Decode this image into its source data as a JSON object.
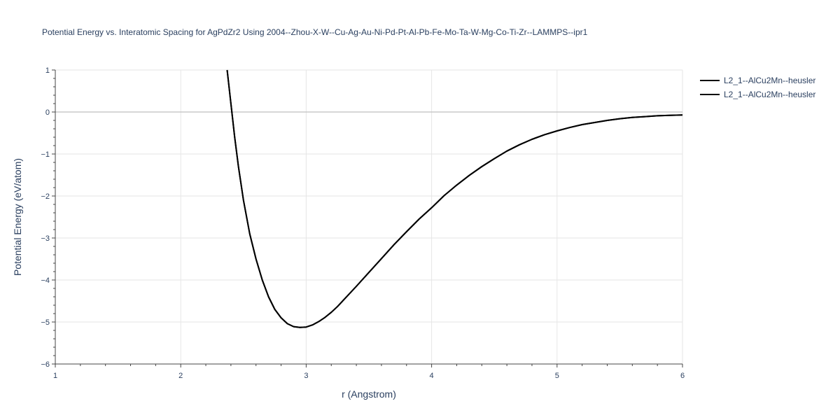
{
  "chart_data": {
    "type": "line",
    "title": "Potential Energy vs. Interatomic Spacing for AgPdZr2 Using 2004--Zhou-X-W--Cu-Ag-Au-Ni-Pd-Pt-Al-Pb-Fe-Mo-Ta-W-Mg-Co-Ti-Zr--LAMMPS--ipr1",
    "xlabel": "r (Angstrom)",
    "ylabel": "Potential Energy (eV/atom)",
    "xlim": [
      1,
      6
    ],
    "ylim": [
      -6,
      1
    ],
    "x_ticks": [
      1,
      2,
      3,
      4,
      5,
      6
    ],
    "y_ticks": [
      1,
      0,
      -1,
      -2,
      -3,
      -4,
      -5,
      -6
    ],
    "x_tick_labels": [
      "1",
      "2",
      "3",
      "4",
      "5",
      "6"
    ],
    "y_tick_labels": [
      "1",
      "0",
      "−1",
      "−2",
      "−3",
      "−4",
      "−5",
      "−6"
    ],
    "grid": true,
    "zero_line": true,
    "legend_position": "top-right",
    "line_color": "#000000",
    "series": [
      {
        "name": "L2_1--AlCu2Mn--heusler",
        "x": [
          2.37,
          2.4,
          2.43,
          2.46,
          2.5,
          2.55,
          2.6,
          2.65,
          2.7,
          2.75,
          2.8,
          2.85,
          2.9,
          2.95,
          3.0,
          3.05,
          3.1,
          3.15,
          3.2,
          3.25,
          3.3,
          3.4,
          3.5,
          3.6,
          3.7,
          3.8,
          3.9,
          4.0,
          4.1,
          4.2,
          4.3,
          4.4,
          4.5,
          4.6,
          4.7,
          4.8,
          4.9,
          5.0,
          5.1,
          5.2,
          5.3,
          5.4,
          5.5,
          5.6,
          5.7,
          5.8,
          5.9,
          6.0
        ],
        "y": [
          1.0,
          0.2,
          -0.6,
          -1.3,
          -2.1,
          -2.9,
          -3.5,
          -4.0,
          -4.4,
          -4.7,
          -4.9,
          -5.04,
          -5.11,
          -5.13,
          -5.12,
          -5.07,
          -4.99,
          -4.89,
          -4.77,
          -4.63,
          -4.47,
          -4.15,
          -3.82,
          -3.49,
          -3.16,
          -2.85,
          -2.55,
          -2.28,
          -1.99,
          -1.74,
          -1.51,
          -1.3,
          -1.11,
          -0.93,
          -0.78,
          -0.65,
          -0.54,
          -0.45,
          -0.37,
          -0.3,
          -0.25,
          -0.2,
          -0.16,
          -0.13,
          -0.11,
          -0.09,
          -0.08,
          -0.07
        ]
      },
      {
        "name": "L2_1--AlCu2Mn--heusler",
        "x": [
          2.37,
          2.4,
          2.43,
          2.46,
          2.5,
          2.55,
          2.6,
          2.65,
          2.7,
          2.75,
          2.8,
          2.85,
          2.9,
          2.95,
          3.0,
          3.05,
          3.1,
          3.15,
          3.2,
          3.25,
          3.3,
          3.4,
          3.5,
          3.6,
          3.7,
          3.8,
          3.9,
          4.0,
          4.1,
          4.2,
          4.3,
          4.4,
          4.5,
          4.6,
          4.7,
          4.8,
          4.9,
          5.0,
          5.1,
          5.2,
          5.3,
          5.4,
          5.5,
          5.6,
          5.7,
          5.8,
          5.9,
          6.0
        ],
        "y": [
          1.0,
          0.2,
          -0.6,
          -1.3,
          -2.1,
          -2.9,
          -3.5,
          -4.0,
          -4.4,
          -4.7,
          -4.9,
          -5.04,
          -5.11,
          -5.13,
          -5.12,
          -5.07,
          -4.99,
          -4.89,
          -4.77,
          -4.63,
          -4.47,
          -4.15,
          -3.82,
          -3.49,
          -3.16,
          -2.85,
          -2.55,
          -2.28,
          -1.99,
          -1.74,
          -1.51,
          -1.3,
          -1.11,
          -0.93,
          -0.78,
          -0.65,
          -0.54,
          -0.45,
          -0.37,
          -0.3,
          -0.25,
          -0.2,
          -0.16,
          -0.13,
          -0.11,
          -0.09,
          -0.08,
          -0.07
        ]
      }
    ]
  }
}
